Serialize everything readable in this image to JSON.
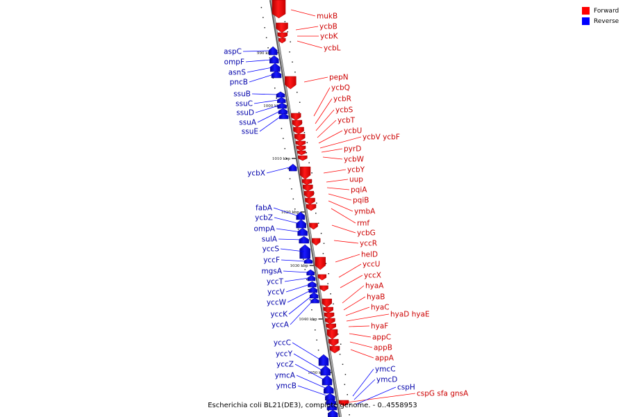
{
  "caption": "Escherichia coli BL21(DE3), complete genome. - 0..4558953",
  "legend": [
    {
      "label": "Forward",
      "color": "#ff0000"
    },
    {
      "label": "Reverse",
      "color": "#0000ff"
    }
  ],
  "colors": {
    "forward": "#ff0000",
    "reverse": "#0000ff",
    "axis": "#888888",
    "forward_label": "#cc0000",
    "reverse_label": "#0000aa"
  },
  "ticks": [
    {
      "kbp": 990,
      "label": "990 kbp"
    },
    {
      "kbp": 1000,
      "label": "1000 kbp"
    },
    {
      "kbp": 1010,
      "label": "1010 kbp"
    },
    {
      "kbp": 1020,
      "label": "1020 kbp"
    },
    {
      "kbp": 1030,
      "label": "1030 kbp"
    },
    {
      "kbp": 1040,
      "label": "1040 kbp"
    },
    {
      "kbp": 1050,
      "label": "1050 kbp"
    }
  ],
  "forward_genes": [
    {
      "name": "mukB"
    },
    {
      "name": "ycbB"
    },
    {
      "name": "ycbK"
    },
    {
      "name": "ycbL"
    },
    {
      "name": "pepN"
    },
    {
      "name": "ycbQ"
    },
    {
      "name": "ycbR"
    },
    {
      "name": "ycbS"
    },
    {
      "name": "ycbT"
    },
    {
      "name": "ycbU"
    },
    {
      "name": "ycbV ycbF"
    },
    {
      "name": "pyrD"
    },
    {
      "name": "ycbW"
    },
    {
      "name": "ycbY"
    },
    {
      "name": "uup"
    },
    {
      "name": "pqiA"
    },
    {
      "name": "pqiB"
    },
    {
      "name": "ymbA"
    },
    {
      "name": "rmf"
    },
    {
      "name": "ycbG"
    },
    {
      "name": "yccR"
    },
    {
      "name": "helD"
    },
    {
      "name": "yccU"
    },
    {
      "name": "yccX"
    },
    {
      "name": "hyaA"
    },
    {
      "name": "hyaB"
    },
    {
      "name": "hyaC"
    },
    {
      "name": "hyaD hyaE"
    },
    {
      "name": "hyaF"
    },
    {
      "name": "appC"
    },
    {
      "name": "appB"
    },
    {
      "name": "appA"
    },
    {
      "name": "cspG sfa gnsA"
    }
  ],
  "reverse_genes": [
    {
      "name": "aspC"
    },
    {
      "name": "ompF"
    },
    {
      "name": "asnS"
    },
    {
      "name": "pncB"
    },
    {
      "name": "ssuB"
    },
    {
      "name": "ssuC"
    },
    {
      "name": "ssuD"
    },
    {
      "name": "ssuA"
    },
    {
      "name": "ssuE"
    },
    {
      "name": "ycbX"
    },
    {
      "name": "fabA"
    },
    {
      "name": "ycbZ"
    },
    {
      "name": "ompA"
    },
    {
      "name": "sulA"
    },
    {
      "name": "yccS"
    },
    {
      "name": "yccF"
    },
    {
      "name": "mgsA"
    },
    {
      "name": "yccT"
    },
    {
      "name": "yccV"
    },
    {
      "name": "yccW"
    },
    {
      "name": "yccK"
    },
    {
      "name": "yccA"
    },
    {
      "name": "yccC"
    },
    {
      "name": "yccY"
    },
    {
      "name": "yccZ"
    },
    {
      "name": "ymcA"
    },
    {
      "name": "ymcB"
    },
    {
      "name": "ymcC"
    },
    {
      "name": "ymcD"
    },
    {
      "name": "cspH"
    }
  ]
}
